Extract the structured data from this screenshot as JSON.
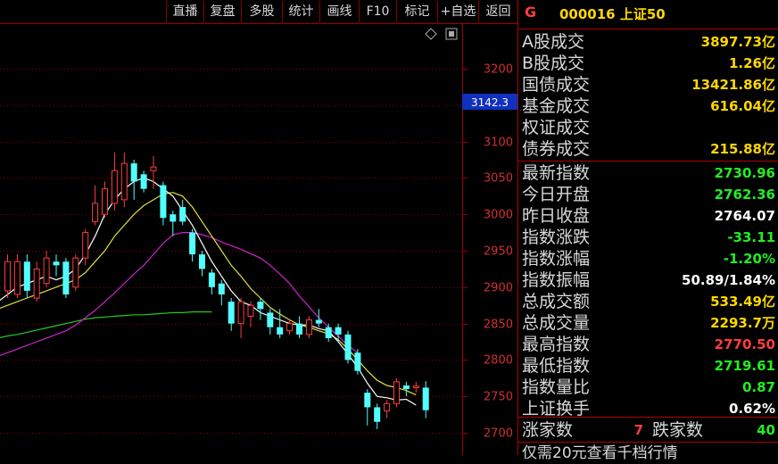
{
  "toolbar": {
    "buttons": [
      "直播",
      "复盘",
      "多股",
      "统计",
      "画线",
      "F10",
      "标记",
      "+自选",
      "返回"
    ]
  },
  "chart_data": {
    "type": "candlestick",
    "y_ticks": [
      3200,
      3150,
      3100,
      3050,
      3000,
      2950,
      2900,
      2850,
      2800,
      2750,
      2700
    ],
    "price_marker": "3142.3",
    "candles": [
      {
        "o": 2895,
        "c": 2935,
        "h": 2945,
        "l": 2885
      },
      {
        "o": 2890,
        "c": 2935,
        "h": 2945,
        "l": 2885
      },
      {
        "o": 2935,
        "c": 2895,
        "h": 2945,
        "l": 2885
      },
      {
        "o": 2885,
        "c": 2925,
        "h": 2935,
        "l": 2880
      },
      {
        "o": 2905,
        "c": 2940,
        "h": 2950,
        "l": 2900
      },
      {
        "o": 2935,
        "c": 2930,
        "h": 2945,
        "l": 2915
      },
      {
        "o": 2935,
        "c": 2890,
        "h": 2940,
        "l": 2885
      },
      {
        "o": 2900,
        "c": 2940,
        "h": 2945,
        "l": 2895
      },
      {
        "o": 2940,
        "c": 2975,
        "h": 2980,
        "l": 2930
      },
      {
        "o": 2990,
        "c": 3015,
        "h": 3040,
        "l": 2985
      },
      {
        "o": 3000,
        "c": 3035,
        "h": 3045,
        "l": 2995
      },
      {
        "o": 3015,
        "c": 3060,
        "h": 3085,
        "l": 3005
      },
      {
        "o": 3020,
        "c": 3070,
        "h": 3085,
        "l": 3010
      },
      {
        "o": 3070,
        "c": 3045,
        "h": 3075,
        "l": 3020
      },
      {
        "o": 3055,
        "c": 3035,
        "h": 3060,
        "l": 3030
      },
      {
        "o": 3060,
        "c": 3065,
        "h": 3080,
        "l": 3035
      },
      {
        "o": 3040,
        "c": 2995,
        "h": 3045,
        "l": 2985
      },
      {
        "o": 3000,
        "c": 2990,
        "h": 3005,
        "l": 2970
      },
      {
        "o": 3010,
        "c": 2990,
        "h": 3020,
        "l": 2985
      },
      {
        "o": 2975,
        "c": 2945,
        "h": 2980,
        "l": 2935
      },
      {
        "o": 2945,
        "c": 2925,
        "h": 2950,
        "l": 2915
      },
      {
        "o": 2920,
        "c": 2900,
        "h": 2925,
        "l": 2890
      },
      {
        "o": 2905,
        "c": 2890,
        "h": 2910,
        "l": 2875
      },
      {
        "o": 2880,
        "c": 2850,
        "h": 2885,
        "l": 2840
      },
      {
        "o": 2850,
        "c": 2880,
        "h": 2885,
        "l": 2830
      },
      {
        "o": 2860,
        "c": 2875,
        "h": 2880,
        "l": 2845
      },
      {
        "o": 2880,
        "c": 2870,
        "h": 2885,
        "l": 2855
      },
      {
        "o": 2865,
        "c": 2845,
        "h": 2870,
        "l": 2835
      },
      {
        "o": 2845,
        "c": 2835,
        "h": 2870,
        "l": 2830
      },
      {
        "o": 2840,
        "c": 2850,
        "h": 2855,
        "l": 2835
      },
      {
        "o": 2850,
        "c": 2835,
        "h": 2860,
        "l": 2830
      },
      {
        "o": 2835,
        "c": 2855,
        "h": 2860,
        "l": 2830
      },
      {
        "o": 2855,
        "c": 2850,
        "h": 2870,
        "l": 2845
      },
      {
        "o": 2845,
        "c": 2830,
        "h": 2850,
        "l": 2825
      },
      {
        "o": 2845,
        "c": 2835,
        "h": 2850,
        "l": 2825
      },
      {
        "o": 2835,
        "c": 2800,
        "h": 2840,
        "l": 2795
      },
      {
        "o": 2810,
        "c": 2785,
        "h": 2815,
        "l": 2780
      },
      {
        "o": 2755,
        "c": 2735,
        "h": 2760,
        "l": 2710
      },
      {
        "o": 2735,
        "c": 2715,
        "h": 2740,
        "l": 2705
      },
      {
        "o": 2730,
        "c": 2740,
        "h": 2745,
        "l": 2720
      },
      {
        "o": 2740,
        "c": 2770,
        "h": 2775,
        "l": 2735
      },
      {
        "o": 2765,
        "c": 2760,
        "h": 2770,
        "l": 2750
      },
      {
        "o": 2762,
        "c": 2764,
        "h": 2770,
        "l": 2755
      },
      {
        "o": 2762,
        "c": 2731,
        "h": 2771,
        "l": 2720
      }
    ],
    "ma_white": [
      2880,
      2890,
      2900,
      2905,
      2910,
      2915,
      2910,
      2915,
      2925,
      2945,
      2970,
      3000,
      3020,
      3035,
      3045,
      3050,
      3045,
      3035,
      3025,
      3005,
      2985,
      2960,
      2935,
      2915,
      2895,
      2880,
      2875,
      2865,
      2860,
      2855,
      2850,
      2848,
      2848,
      2843,
      2840,
      2825,
      2808,
      2790,
      2768,
      2750,
      2748,
      2745,
      2746,
      2738
    ],
    "ma_yellow": [
      2870,
      2875,
      2880,
      2885,
      2890,
      2895,
      2900,
      2905,
      2910,
      2920,
      2935,
      2950,
      2970,
      2985,
      3000,
      3012,
      3020,
      3028,
      3030,
      3025,
      3010,
      2990,
      2970,
      2950,
      2930,
      2915,
      2898,
      2885,
      2872,
      2863,
      2855,
      2848,
      2845,
      2840,
      2836,
      2828,
      2815,
      2800,
      2785,
      2772,
      2765,
      2762,
      2758,
      2752
    ],
    "ma_magenta": [
      2805,
      2810,
      2815,
      2820,
      2825,
      2830,
      2835,
      2840,
      2848,
      2858,
      2868,
      2880,
      2892,
      2905,
      2918,
      2930,
      2945,
      2960,
      2972,
      2975,
      2975,
      2972,
      2968,
      2962,
      2957,
      2952,
      2946,
      2940,
      2930,
      2918,
      2905,
      2888,
      2873,
      2858,
      2845,
      2833,
      2820,
      2810
    ],
    "ma_green": [
      2830,
      2833,
      2835,
      2838,
      2841,
      2844,
      2847,
      2850,
      2853,
      2856,
      2858,
      2859,
      2860,
      2861,
      2862,
      2862,
      2863,
      2864,
      2865,
      2865,
      2866,
      2866,
      2866
    ]
  },
  "panel": {
    "header_mark": "G",
    "code_name": "000016 上证50",
    "rows": [
      {
        "label": "A股成交",
        "value": "3897.73亿",
        "color": "yellow"
      },
      {
        "label": "B股成交",
        "value": "1.26亿",
        "color": "yellow"
      },
      {
        "label": "国债成交",
        "value": "13421.86亿",
        "color": "yellow"
      },
      {
        "label": "基金成交",
        "value": "616.04亿",
        "color": "yellow"
      },
      {
        "label": "权证成交",
        "value": "",
        "color": "yellow"
      },
      {
        "label": "债券成交",
        "value": "215.88亿",
        "color": "yellow"
      },
      {
        "label": "最新指数",
        "value": "2730.96",
        "color": "green"
      },
      {
        "label": "今日开盘",
        "value": "2762.36",
        "color": "green"
      },
      {
        "label": "昨日收盘",
        "value": "2764.07",
        "color": "white"
      },
      {
        "label": "指数涨跌",
        "value": "-33.11",
        "color": "green"
      },
      {
        "label": "指数涨幅",
        "value": "-1.20%",
        "color": "green"
      },
      {
        "label": "指数振幅",
        "value": "50.89/1.84%",
        "color": "white"
      },
      {
        "label": "总成交额",
        "value": "533.49亿",
        "color": "yellow"
      },
      {
        "label": "总成交量",
        "value": "2293.7万",
        "color": "yellow"
      },
      {
        "label": "最高指数",
        "value": "2770.50",
        "color": "red"
      },
      {
        "label": "最低指数",
        "value": "2719.61",
        "color": "green"
      },
      {
        "label": "指数量比",
        "value": "0.87",
        "color": "green"
      },
      {
        "label": "上证换手",
        "value": "0.62%",
        "color": "white"
      }
    ],
    "adv_label": "涨家数",
    "adv_value": "7",
    "dec_label": "跌家数",
    "dec_value": "40",
    "bottom_text": "仅需20元查看千档行情"
  }
}
